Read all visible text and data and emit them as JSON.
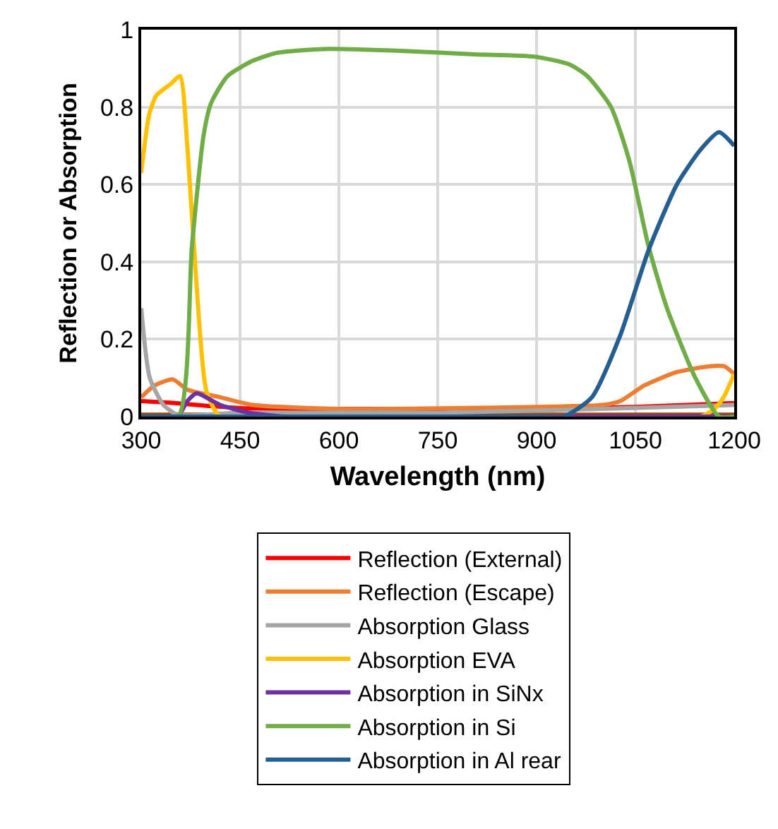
{
  "chart_data": {
    "type": "line",
    "xlabel": "Wavelength (nm)",
    "ylabel": "Reflection or Absorption",
    "xlim": [
      300,
      1200
    ],
    "xticks": [
      300,
      450,
      600,
      750,
      900,
      1050,
      1200
    ],
    "ylim": [
      0,
      1
    ],
    "yticks": [
      0,
      0.2,
      0.4,
      0.6,
      0.8,
      1
    ],
    "grid": true,
    "legend": "bottom",
    "marker": "none",
    "line_style": "solid",
    "series": [
      {
        "name": "Reflection (External)",
        "color": "#ff0000",
        "x": [
          300,
          350,
          400,
          450,
          600,
          900,
          1050,
          1200
        ],
        "values": [
          0.04,
          0.035,
          0.028,
          0.022,
          0.02,
          0.02,
          0.025,
          0.035
        ]
      },
      {
        "name": "Reflection (Escape)",
        "color": "#ed7d31",
        "x": [
          300,
          320,
          348,
          370,
          420,
          470,
          600,
          900,
          1000,
          1027,
          1063,
          1113,
          1163,
          1185,
          1200
        ],
        "values": [
          0.05,
          0.08,
          0.096,
          0.07,
          0.05,
          0.03,
          0.02,
          0.025,
          0.03,
          0.04,
          0.08,
          0.115,
          0.13,
          0.13,
          0.11
        ]
      },
      {
        "name": "Absorption Glass",
        "color": "#a5a5a5",
        "x": [
          300,
          313,
          334,
          355,
          450,
          750,
          1000,
          1200
        ],
        "values": [
          0.28,
          0.1,
          0.03,
          0.005,
          0.01,
          0.01,
          0.02,
          0.03
        ]
      },
      {
        "name": "Absorption EVA",
        "color": "#ffc000",
        "x": [
          300,
          312,
          323,
          345,
          359,
          370,
          384,
          399,
          420,
          600,
          900,
          1149,
          1170,
          1184,
          1200
        ],
        "values": [
          0.63,
          0.78,
          0.83,
          0.86,
          0.88,
          0.7,
          0.34,
          0.066,
          0,
          0,
          0,
          0,
          0.02,
          0.05,
          0.11
        ]
      },
      {
        "name": "Absorption in SiNx",
        "color": "#7030a0",
        "x": [
          300,
          355,
          370,
          384,
          420,
          464,
          520,
          750,
          1200
        ],
        "values": [
          0,
          0,
          0.04,
          0.06,
          0.03,
          0.01,
          0,
          0,
          0
        ]
      },
      {
        "name": "Absorption in Si",
        "color": "#70ad47",
        "x": [
          300,
          356,
          377,
          395,
          406,
          431,
          470,
          506,
          577,
          700,
          806,
          898,
          950,
          977,
          1013,
          1041,
          1070,
          1098,
          1141,
          1177,
          1200
        ],
        "values": [
          0,
          0,
          0.44,
          0.73,
          0.81,
          0.88,
          0.92,
          0.94,
          0.95,
          0.945,
          0.936,
          0.93,
          0.91,
          0.88,
          0.8,
          0.66,
          0.44,
          0.28,
          0.1,
          0,
          0
        ]
      },
      {
        "name": "Absorption in Al rear",
        "color": "#255e91",
        "x": [
          300,
          900,
          941,
          984,
          1027,
          1070,
          1113,
          1149,
          1177,
          1200
        ],
        "values": [
          0,
          0,
          0,
          0.05,
          0.21,
          0.43,
          0.6,
          0.69,
          0.735,
          0.7
        ]
      },
      {
        "color": "#9e480e",
        "x": [
          300,
          1200
        ],
        "values": [
          0.005,
          0.005
        ]
      }
    ]
  }
}
